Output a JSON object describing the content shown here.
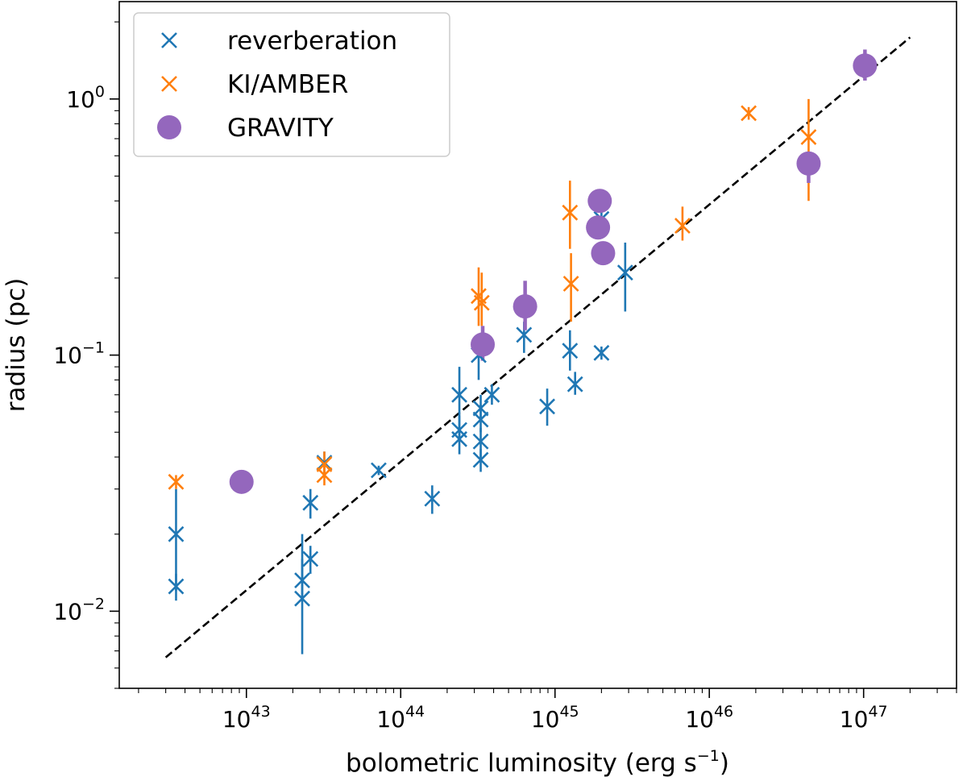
{
  "chart_data": {
    "type": "scatter",
    "xscale": "log",
    "yscale": "log",
    "xlim": [
      1.5e+42,
      4e+47
    ],
    "ylim": [
      0.005,
      2.4
    ],
    "xlabel": "bolometric luminosity (erg s",
    "xlabel_sup": "−1",
    "xlabel_close": ")",
    "ylabel": "radius (pc)",
    "x_ticks": [
      {
        "base": "10",
        "exp": "43",
        "value": 1e+43
      },
      {
        "base": "10",
        "exp": "44",
        "value": 1e+44
      },
      {
        "base": "10",
        "exp": "45",
        "value": 1e+45
      },
      {
        "base": "10",
        "exp": "46",
        "value": 1e+46
      },
      {
        "base": "10",
        "exp": "47",
        "value": 1e+47
      }
    ],
    "y_ticks": [
      {
        "base": "10",
        "exp": "−2",
        "value": 0.01
      },
      {
        "base": "10",
        "exp": "−1",
        "value": 0.1
      },
      {
        "base": "10",
        "exp": "0",
        "value": 1
      }
    ],
    "legend_position": "upper-left",
    "fit_line": {
      "style": "dashed",
      "color": "#000000",
      "x": [
        3e+42,
        2e+47
      ],
      "y": [
        0.0066,
        1.74
      ]
    },
    "series": [
      {
        "name": "reverberation",
        "marker": "x",
        "color": "#1f77b4",
        "points": [
          {
            "x": 3.5e+42,
            "y": 0.02,
            "yerr_low": 0.012,
            "yerr_high": 0.03
          },
          {
            "x": 3.5e+42,
            "y": 0.0125,
            "yerr_low": 0.011,
            "yerr_high": 0.014
          },
          {
            "x": 2.3e+43,
            "y": 0.0112,
            "yerr_low": 0.0068,
            "yerr_high": 0.016
          },
          {
            "x": 2.3e+43,
            "y": 0.0132,
            "yerr_low": 0.011,
            "yerr_high": 0.02
          },
          {
            "x": 2.6e+43,
            "y": 0.016,
            "yerr_low": 0.014,
            "yerr_high": 0.018
          },
          {
            "x": 2.6e+43,
            "y": 0.0265,
            "yerr_low": 0.023,
            "yerr_high": 0.03
          },
          {
            "x": 3.2e+43,
            "y": 0.038,
            "yerr_low": 0.034,
            "yerr_high": 0.042
          },
          {
            "x": 7.2e+43,
            "y": 0.0355,
            "yerr_low": 0.034,
            "yerr_high": 0.037
          },
          {
            "x": 1.6e+44,
            "y": 0.0275,
            "yerr_low": 0.024,
            "yerr_high": 0.031
          },
          {
            "x": 2.4e+44,
            "y": 0.047,
            "yerr_low": 0.041,
            "yerr_high": 0.055
          },
          {
            "x": 2.4e+44,
            "y": 0.051,
            "yerr_low": 0.046,
            "yerr_high": 0.058
          },
          {
            "x": 2.4e+44,
            "y": 0.07,
            "yerr_low": 0.055,
            "yerr_high": 0.09
          },
          {
            "x": 3.3e+44,
            "y": 0.039,
            "yerr_low": 0.035,
            "yerr_high": 0.043
          },
          {
            "x": 3.3e+44,
            "y": 0.046,
            "yerr_low": 0.04,
            "yerr_high": 0.052
          },
          {
            "x": 3.3e+44,
            "y": 0.056,
            "yerr_low": 0.05,
            "yerr_high": 0.064
          },
          {
            "x": 3.3e+44,
            "y": 0.062,
            "yerr_low": 0.056,
            "yerr_high": 0.07
          },
          {
            "x": 3.2e+44,
            "y": 0.1,
            "yerr_low": 0.08,
            "yerr_high": 0.115
          },
          {
            "x": 3.9e+44,
            "y": 0.07,
            "yerr_low": 0.064,
            "yerr_high": 0.077
          },
          {
            "x": 6.3e+44,
            "y": 0.12,
            "yerr_low": 0.102,
            "yerr_high": 0.135
          },
          {
            "x": 8.9e+44,
            "y": 0.063,
            "yerr_low": 0.053,
            "yerr_high": 0.074
          },
          {
            "x": 1.25e+45,
            "y": 0.104,
            "yerr_low": 0.087,
            "yerr_high": 0.125
          },
          {
            "x": 1.35e+45,
            "y": 0.077,
            "yerr_low": 0.07,
            "yerr_high": 0.086
          },
          {
            "x": 2e+45,
            "y": 0.102,
            "yerr_low": 0.096,
            "yerr_high": 0.108
          },
          {
            "x": 2e+45,
            "y": 0.34,
            "yerr_low": 0.3,
            "yerr_high": 0.38
          },
          {
            "x": 2.85e+45,
            "y": 0.21,
            "yerr_low": 0.148,
            "yerr_high": 0.275
          }
        ]
      },
      {
        "name": "KI/AMBER",
        "marker": "x",
        "color": "#ff7f0e",
        "points": [
          {
            "x": 3.5e+42,
            "y": 0.032,
            "yerr_low": 0.03,
            "yerr_high": 0.034
          },
          {
            "x": 3.2e+43,
            "y": 0.034,
            "yerr_low": 0.031,
            "yerr_high": 0.038
          },
          {
            "x": 3.2e+43,
            "y": 0.0375,
            "yerr_low": 0.034,
            "yerr_high": 0.042
          },
          {
            "x": 3.2e+44,
            "y": 0.17,
            "yerr_low": 0.13,
            "yerr_high": 0.22
          },
          {
            "x": 3.35e+44,
            "y": 0.16,
            "yerr_low": 0.13,
            "yerr_high": 0.21
          },
          {
            "x": 1.25e+45,
            "y": 0.36,
            "yerr_low": 0.26,
            "yerr_high": 0.48
          },
          {
            "x": 1.27e+45,
            "y": 0.19,
            "yerr_low": 0.135,
            "yerr_high": 0.25
          },
          {
            "x": 6.7e+45,
            "y": 0.32,
            "yerr_low": 0.28,
            "yerr_high": 0.38
          },
          {
            "x": 1.8e+46,
            "y": 0.88,
            "yerr_low": 0.83,
            "yerr_high": 0.93
          },
          {
            "x": 4.4e+46,
            "y": 0.71,
            "yerr_low": 0.4,
            "yerr_high": 1.0
          }
        ]
      },
      {
        "name": "GRAVITY",
        "marker": "o",
        "color": "#9467bd",
        "points": [
          {
            "x": 9.3e+42,
            "y": 0.032,
            "yerr_low": 0.029,
            "yerr_high": 0.034
          },
          {
            "x": 3.4e+44,
            "y": 0.11,
            "yerr_low": 0.095,
            "yerr_high": 0.13
          },
          {
            "x": 6.4e+44,
            "y": 0.155,
            "yerr_low": 0.125,
            "yerr_high": 0.195
          },
          {
            "x": 1.95e+45,
            "y": 0.4,
            "yerr_low": 0.37,
            "yerr_high": 0.43
          },
          {
            "x": 1.9e+45,
            "y": 0.315,
            "yerr_low": 0.285,
            "yerr_high": 0.35
          },
          {
            "x": 2.05e+45,
            "y": 0.25,
            "yerr_low": 0.23,
            "yerr_high": 0.27
          },
          {
            "x": 4.4e+46,
            "y": 0.56,
            "yerr_low": 0.47,
            "yerr_high": 0.62
          },
          {
            "x": 1.02e+47,
            "y": 1.35,
            "yerr_low": 1.18,
            "yerr_high": 1.56
          }
        ]
      }
    ]
  }
}
